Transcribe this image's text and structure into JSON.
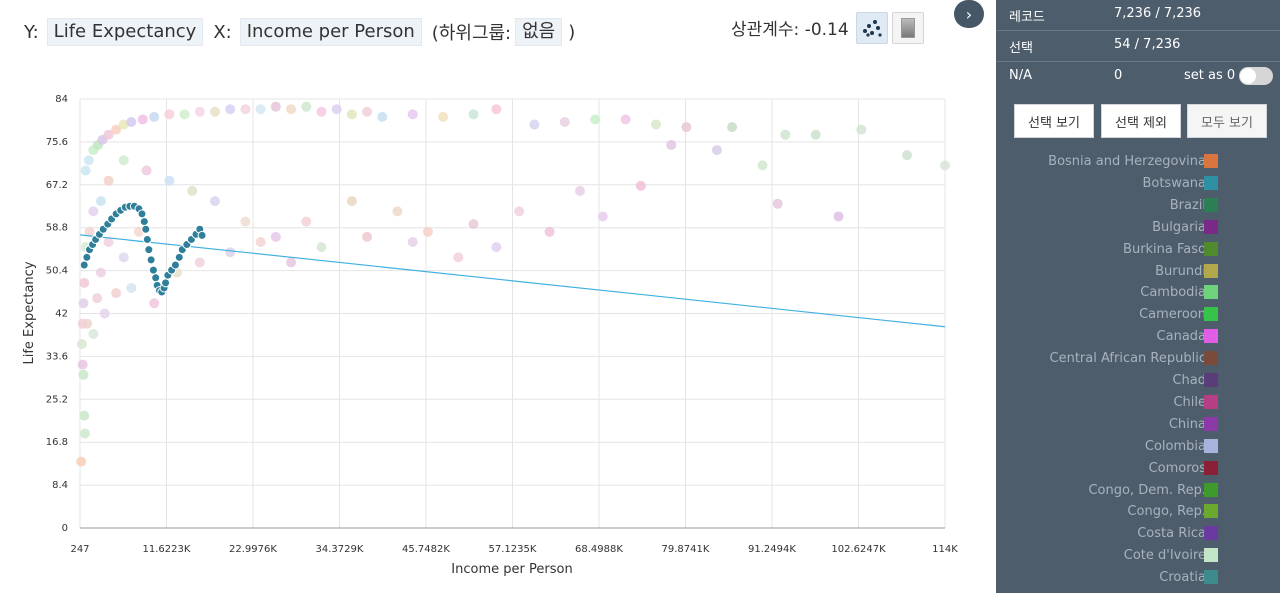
{
  "controls": {
    "y_prefix": "Y:",
    "y_value": "Life Expectancy",
    "x_prefix": "X:",
    "x_value": "Income per Person",
    "subgroup_open": "(하위그룹:",
    "subgroup_value": "없음",
    "subgroup_close": ")",
    "correlation": "상관계수: -0.14",
    "scatter_icon": "scatter-plot-icon",
    "heatmap_icon": "heatmap-gradient-icon",
    "panel_toggle_icon": "chevron-right-icon",
    "panel_toggle_glyph": "›"
  },
  "chart_data": {
    "type": "scatter",
    "xlabel": "Income per Person",
    "ylabel": "Life Expectancy",
    "xlim": [
      247,
      114000
    ],
    "ylim": [
      0,
      84
    ],
    "x_ticks": [
      "247",
      "11.6223K",
      "22.9976K",
      "34.3729K",
      "45.7482K",
      "57.1235K",
      "68.4988K",
      "79.8741K",
      "91.2494K",
      "102.6247K",
      "114K"
    ],
    "y_ticks": [
      "84",
      "75.6",
      "67.2",
      "58.8",
      "50.4",
      "42",
      "33.6",
      "25.2",
      "16.8",
      "8.4",
      "0"
    ],
    "grid": true,
    "trend_line": {
      "x": [
        247,
        114000
      ],
      "y": [
        57.4,
        39.4
      ],
      "color": "#3fb0e0"
    },
    "selected_color": "#2f7f9b",
    "selected_points": [
      {
        "x": 800,
        "y": 51.5
      },
      {
        "x": 1150,
        "y": 53
      },
      {
        "x": 1500,
        "y": 54.5
      },
      {
        "x": 1900,
        "y": 55.5
      },
      {
        "x": 2300,
        "y": 56.5
      },
      {
        "x": 2800,
        "y": 57.5
      },
      {
        "x": 3300,
        "y": 58.5
      },
      {
        "x": 3900,
        "y": 59.5
      },
      {
        "x": 4400,
        "y": 60.5
      },
      {
        "x": 5000,
        "y": 61.5
      },
      {
        "x": 5600,
        "y": 62.2
      },
      {
        "x": 6200,
        "y": 62.8
      },
      {
        "x": 6800,
        "y": 63
      },
      {
        "x": 7400,
        "y": 63
      },
      {
        "x": 8000,
        "y": 62.5
      },
      {
        "x": 8400,
        "y": 61.5
      },
      {
        "x": 8700,
        "y": 60
      },
      {
        "x": 8900,
        "y": 58.5
      },
      {
        "x": 9100,
        "y": 56.5
      },
      {
        "x": 9300,
        "y": 54.5
      },
      {
        "x": 9600,
        "y": 52.5
      },
      {
        "x": 9900,
        "y": 50.5
      },
      {
        "x": 10200,
        "y": 49
      },
      {
        "x": 10400,
        "y": 47.5
      },
      {
        "x": 10700,
        "y": 46.5
      },
      {
        "x": 11000,
        "y": 46.2
      },
      {
        "x": 11300,
        "y": 47
      },
      {
        "x": 11500,
        "y": 48
      },
      {
        "x": 11800,
        "y": 49.5
      },
      {
        "x": 12300,
        "y": 50.5
      },
      {
        "x": 12800,
        "y": 51.5
      },
      {
        "x": 13300,
        "y": 53
      },
      {
        "x": 13700,
        "y": 54.5
      },
      {
        "x": 14300,
        "y": 55.5
      },
      {
        "x": 14900,
        "y": 56.5
      },
      {
        "x": 15500,
        "y": 57.5
      },
      {
        "x": 16000,
        "y": 58.5
      },
      {
        "x": 16300,
        "y": 57.3
      }
    ],
    "faded_points_desc": "background points of all other countries (faded)",
    "faded_points": [
      {
        "x": 1000,
        "y": 70,
        "c": "#c9e6f2"
      },
      {
        "x": 1400,
        "y": 72,
        "c": "#cce8f5"
      },
      {
        "x": 2000,
        "y": 74,
        "c": "#c6f0c8"
      },
      {
        "x": 2600,
        "y": 75,
        "c": "#bfe6c2"
      },
      {
        "x": 3200,
        "y": 76,
        "c": "#d9c7e6"
      },
      {
        "x": 4000,
        "y": 77,
        "c": "#f0c8d8"
      },
      {
        "x": 5000,
        "y": 78,
        "c": "#f6d0bf"
      },
      {
        "x": 6000,
        "y": 79,
        "c": "#e6e6b8"
      },
      {
        "x": 7000,
        "y": 79.5,
        "c": "#d6c8ee"
      },
      {
        "x": 8500,
        "y": 80,
        "c": "#f0c0e8"
      },
      {
        "x": 10000,
        "y": 80.5,
        "c": "#c8d8f0"
      },
      {
        "x": 12000,
        "y": 81,
        "c": "#f7cfd6"
      },
      {
        "x": 14000,
        "y": 81,
        "c": "#d0efd0"
      },
      {
        "x": 16000,
        "y": 81.5,
        "c": "#f4d6e6"
      },
      {
        "x": 18000,
        "y": 81.5,
        "c": "#e8e0c8"
      },
      {
        "x": 20000,
        "y": 82,
        "c": "#d8d0f4"
      },
      {
        "x": 22000,
        "y": 82,
        "c": "#f2d4dc"
      },
      {
        "x": 24000,
        "y": 82,
        "c": "#d4e8f4"
      },
      {
        "x": 26000,
        "y": 82.5,
        "c": "#e8c4dc"
      },
      {
        "x": 28000,
        "y": 82,
        "c": "#f0dcc8"
      },
      {
        "x": 30000,
        "y": 82.5,
        "c": "#cfe6cf"
      },
      {
        "x": 32000,
        "y": 81.5,
        "c": "#f6c8e0"
      },
      {
        "x": 34000,
        "y": 82,
        "c": "#dcd0f0"
      },
      {
        "x": 36000,
        "y": 81,
        "c": "#e0e8c0"
      },
      {
        "x": 38000,
        "y": 81.5,
        "c": "#f2d0d8"
      },
      {
        "x": 40000,
        "y": 80.5,
        "c": "#c8e0f0"
      },
      {
        "x": 44000,
        "y": 81,
        "c": "#e6c8f0"
      },
      {
        "x": 48000,
        "y": 80.5,
        "c": "#f0e0c0"
      },
      {
        "x": 52000,
        "y": 81,
        "c": "#c8e8d8"
      },
      {
        "x": 55000,
        "y": 82,
        "c": "#f4c8d4"
      },
      {
        "x": 60000,
        "y": 79,
        "c": "#d4d4f0"
      },
      {
        "x": 64000,
        "y": 79.5,
        "c": "#e8d0e0"
      },
      {
        "x": 68000,
        "y": 80,
        "c": "#c8f0c8"
      },
      {
        "x": 72000,
        "y": 80,
        "c": "#f0c8e8"
      },
      {
        "x": 76000,
        "y": 79,
        "c": "#d8e8c8"
      },
      {
        "x": 80000,
        "y": 78.5,
        "c": "#e8c8d0"
      },
      {
        "x": 86000,
        "y": 78.5,
        "c": "#c8dcc8"
      },
      {
        "x": 93000,
        "y": 77,
        "c": "#d0e4d0"
      },
      {
        "x": 97000,
        "y": 77,
        "c": "#cce0cc"
      },
      {
        "x": 103000,
        "y": 78,
        "c": "#d4e4d4"
      },
      {
        "x": 109000,
        "y": 73,
        "c": "#d0e0d0"
      },
      {
        "x": 114000,
        "y": 71,
        "c": "#d8e4d8"
      },
      {
        "x": 78000,
        "y": 75,
        "c": "#e0c8e0"
      },
      {
        "x": 84000,
        "y": 74,
        "c": "#d8cce8"
      },
      {
        "x": 90000,
        "y": 71,
        "c": "#d0e8d0"
      },
      {
        "x": 100000,
        "y": 61,
        "c": "#e0c0e8"
      },
      {
        "x": 92000,
        "y": 63.5,
        "c": "#e6c6dc"
      },
      {
        "x": 74000,
        "y": 67,
        "c": "#f0c0d8"
      },
      {
        "x": 66000,
        "y": 66,
        "c": "#e8d0e8"
      },
      {
        "x": 58000,
        "y": 62,
        "c": "#f2d0e0"
      },
      {
        "x": 52000,
        "y": 59.5,
        "c": "#e8c8d8"
      },
      {
        "x": 46000,
        "y": 58,
        "c": "#f6d0c8"
      },
      {
        "x": 42000,
        "y": 62,
        "c": "#f0d8c8"
      },
      {
        "x": 36000,
        "y": 64,
        "c": "#e8d8c0"
      },
      {
        "x": 30000,
        "y": 60,
        "c": "#f4d0d8"
      },
      {
        "x": 26000,
        "y": 57,
        "c": "#e6c8e6"
      },
      {
        "x": 22000,
        "y": 60,
        "c": "#f0dcd0"
      },
      {
        "x": 18000,
        "y": 64,
        "c": "#d8d4f0"
      },
      {
        "x": 15000,
        "y": 66,
        "c": "#e0e0c8"
      },
      {
        "x": 12000,
        "y": 68,
        "c": "#cce0f4"
      },
      {
        "x": 9000,
        "y": 70,
        "c": "#f0c8e0"
      },
      {
        "x": 6000,
        "y": 72,
        "c": "#d0ecd0"
      },
      {
        "x": 4000,
        "y": 68,
        "c": "#f2d0c8"
      },
      {
        "x": 3000,
        "y": 64,
        "c": "#c8e4f0"
      },
      {
        "x": 2000,
        "y": 62,
        "c": "#e4d0f0"
      },
      {
        "x": 1500,
        "y": 58,
        "c": "#f4d4d4"
      },
      {
        "x": 1000,
        "y": 55,
        "c": "#d4ecd4"
      },
      {
        "x": 800,
        "y": 48,
        "c": "#f0c8d8"
      },
      {
        "x": 700,
        "y": 44,
        "c": "#e0d0e8"
      },
      {
        "x": 600,
        "y": 40,
        "c": "#f4ccd8"
      },
      {
        "x": 500,
        "y": 36,
        "c": "#d8e8d0"
      },
      {
        "x": 600,
        "y": 32,
        "c": "#e8c4e0"
      },
      {
        "x": 700,
        "y": 30,
        "c": "#c8e8c8"
      },
      {
        "x": 800,
        "y": 22,
        "c": "#c8e8c8"
      },
      {
        "x": 900,
        "y": 18.5,
        "c": "#cce8cc"
      },
      {
        "x": 400,
        "y": 13,
        "c": "#f6d0b4"
      },
      {
        "x": 2500,
        "y": 45,
        "c": "#f0d0d8"
      },
      {
        "x": 3500,
        "y": 42,
        "c": "#e4d4ec"
      },
      {
        "x": 5000,
        "y": 46,
        "c": "#f4d0d0"
      },
      {
        "x": 7000,
        "y": 47,
        "c": "#d4e4f0"
      },
      {
        "x": 10000,
        "y": 44,
        "c": "#f0c8dc"
      },
      {
        "x": 13000,
        "y": 50,
        "c": "#e8e0cc"
      },
      {
        "x": 16000,
        "y": 52,
        "c": "#f0d4e0"
      },
      {
        "x": 20000,
        "y": 54,
        "c": "#dcd4ec"
      },
      {
        "x": 24000,
        "y": 56,
        "c": "#f4d4d0"
      },
      {
        "x": 28000,
        "y": 52,
        "c": "#e8c8e0"
      },
      {
        "x": 32000,
        "y": 55,
        "c": "#d4e8d4"
      },
      {
        "x": 38000,
        "y": 57,
        "c": "#f0c8d0"
      },
      {
        "x": 44000,
        "y": 56,
        "c": "#e8d0e8"
      },
      {
        "x": 50000,
        "y": 53,
        "c": "#f4d0dc"
      },
      {
        "x": 55000,
        "y": 55,
        "c": "#e0d0f0"
      },
      {
        "x": 62000,
        "y": 58,
        "c": "#f0c4dc"
      },
      {
        "x": 69000,
        "y": 61,
        "c": "#e8ccec"
      },
      {
        "x": 3000,
        "y": 50,
        "c": "#ecd0e4"
      },
      {
        "x": 1200,
        "y": 40,
        "c": "#f0d4d0"
      },
      {
        "x": 2000,
        "y": 38,
        "c": "#d8e8d8"
      },
      {
        "x": 4000,
        "y": 56,
        "c": "#f0d0e0"
      },
      {
        "x": 6000,
        "y": 53,
        "c": "#e0d8f0"
      },
      {
        "x": 8000,
        "y": 58,
        "c": "#f4d8cc"
      }
    ]
  },
  "panel": {
    "records_label": "레코드",
    "records_value": "7,236 / 7,236",
    "selection_label": "선택",
    "selection_value": "54 / 7,236",
    "na_label": "N/A",
    "na_value": "0",
    "setas_label": "set as 0",
    "btn_show_selection": "선택 보기",
    "btn_exclude_selection": "선택 제외",
    "btn_show_all": "모두 보기",
    "legend": [
      {
        "name": "Bosnia and Herzegovina",
        "color": "#d9743f"
      },
      {
        "name": "Botswana",
        "color": "#2f8fa3"
      },
      {
        "name": "Brazil",
        "color": "#2d7d55"
      },
      {
        "name": "Bulgaria",
        "color": "#7a2a86"
      },
      {
        "name": "Burkina Faso",
        "color": "#4f8b2c"
      },
      {
        "name": "Burundi",
        "color": "#b0a84a"
      },
      {
        "name": "Cambodia",
        "color": "#6ed17b"
      },
      {
        "name": "Cameroon",
        "color": "#37c24a"
      },
      {
        "name": "Canada",
        "color": "#e05de6"
      },
      {
        "name": "Central African Republic",
        "color": "#7a4a3a"
      },
      {
        "name": "Chad",
        "color": "#5a3c78"
      },
      {
        "name": "Chile",
        "color": "#b53e84"
      },
      {
        "name": "China",
        "color": "#8b3aa8"
      },
      {
        "name": "Colombia",
        "color": "#a7b3de"
      },
      {
        "name": "Comoros",
        "color": "#8a1f38"
      },
      {
        "name": "Congo, Dem. Rep.",
        "color": "#3f9a2c"
      },
      {
        "name": "Congo, Rep.",
        "color": "#6aa830"
      },
      {
        "name": "Costa Rica",
        "color": "#6b3aa0"
      },
      {
        "name": "Cote d'Ivoire",
        "color": "#c3e6c8"
      },
      {
        "name": "Croatia",
        "color": "#3c8a8c"
      }
    ]
  }
}
